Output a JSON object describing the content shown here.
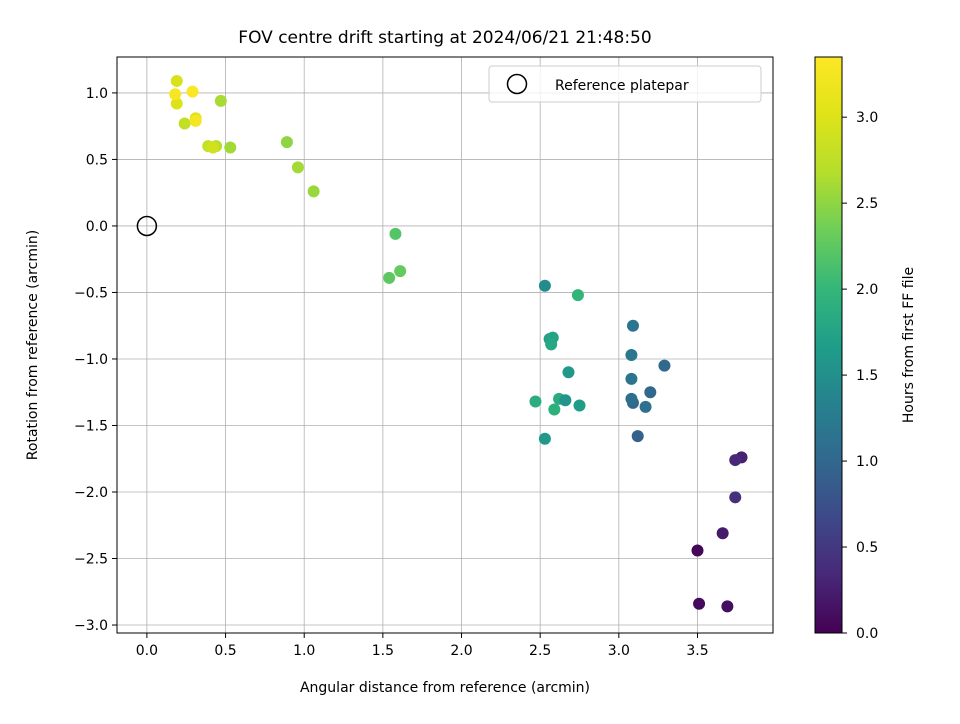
{
  "chart_data": {
    "type": "scatter",
    "title": "FOV centre drift starting at 2024/06/21 21:48:50",
    "xlabel": "Angular distance from reference (arcmin)",
    "ylabel": "Rotation from reference (arcmin)",
    "xlim": [
      -0.19,
      3.98
    ],
    "ylim": [
      -3.06,
      1.27
    ],
    "xticks": [
      0.0,
      0.5,
      1.0,
      1.5,
      2.0,
      2.5,
      3.0,
      3.5
    ],
    "xtick_labels": [
      "0.0",
      "0.5",
      "1.0",
      "1.5",
      "2.0",
      "2.5",
      "3.0",
      "3.5"
    ],
    "yticks": [
      1.0,
      0.5,
      0.0,
      -0.5,
      -1.0,
      -1.5,
      -2.0,
      -2.5,
      -3.0
    ],
    "ytick_labels": [
      "1.0",
      "0.5",
      "0.0",
      "−0.5",
      "−1.0",
      "−1.5",
      "−2.0",
      "−2.5",
      "−3.0"
    ],
    "grid": true,
    "legend": {
      "position": "top-right",
      "entries": [
        "Reference platepar"
      ]
    },
    "reference_point": {
      "x": 0.0,
      "y": 0.0,
      "label": "Reference platepar"
    },
    "colorbar": {
      "label": "Hours from first FF file",
      "range": [
        0.0,
        3.35
      ],
      "colormap": "viridis",
      "ticks": [
        0.0,
        0.5,
        1.0,
        1.5,
        2.0,
        2.5,
        3.0
      ],
      "tick_labels": [
        "0.0",
        "0.5",
        "1.0",
        "1.5",
        "2.0",
        "2.5",
        "3.0"
      ]
    },
    "points": [
      {
        "x": 3.5,
        "y": -2.44,
        "c": 0.05
      },
      {
        "x": 3.51,
        "y": -2.84,
        "c": 0.08
      },
      {
        "x": 3.69,
        "y": -2.86,
        "c": 0.12
      },
      {
        "x": 3.66,
        "y": -2.31,
        "c": 0.22
      },
      {
        "x": 3.74,
        "y": -2.04,
        "c": 0.42
      },
      {
        "x": 3.78,
        "y": -1.74,
        "c": 0.28
      },
      {
        "x": 3.74,
        "y": -1.76,
        "c": 0.35
      },
      {
        "x": 3.12,
        "y": -1.58,
        "c": 0.95
      },
      {
        "x": 3.09,
        "y": -1.33,
        "c": 1.05
      },
      {
        "x": 3.08,
        "y": -1.3,
        "c": 1.1
      },
      {
        "x": 3.17,
        "y": -1.36,
        "c": 1.12
      },
      {
        "x": 3.2,
        "y": -1.25,
        "c": 1.0
      },
      {
        "x": 3.08,
        "y": -1.15,
        "c": 1.15
      },
      {
        "x": 3.08,
        "y": -0.97,
        "c": 1.2
      },
      {
        "x": 3.09,
        "y": -0.75,
        "c": 1.18
      },
      {
        "x": 3.29,
        "y": -1.05,
        "c": 1.02
      },
      {
        "x": 2.53,
        "y": -0.45,
        "c": 1.45
      },
      {
        "x": 2.74,
        "y": -0.52,
        "c": 1.98
      },
      {
        "x": 2.56,
        "y": -0.85,
        "c": 1.7
      },
      {
        "x": 2.58,
        "y": -0.84,
        "c": 1.75
      },
      {
        "x": 2.57,
        "y": -0.89,
        "c": 1.8
      },
      {
        "x": 2.68,
        "y": -1.1,
        "c": 1.6
      },
      {
        "x": 2.62,
        "y": -1.3,
        "c": 1.85
      },
      {
        "x": 2.66,
        "y": -1.31,
        "c": 1.55
      },
      {
        "x": 2.75,
        "y": -1.35,
        "c": 1.65
      },
      {
        "x": 2.59,
        "y": -1.38,
        "c": 1.9
      },
      {
        "x": 2.47,
        "y": -1.32,
        "c": 1.88
      },
      {
        "x": 2.53,
        "y": -1.6,
        "c": 1.62
      },
      {
        "x": 1.58,
        "y": -0.06,
        "c": 2.2
      },
      {
        "x": 1.54,
        "y": -0.39,
        "c": 2.25
      },
      {
        "x": 1.61,
        "y": -0.34,
        "c": 2.28
      },
      {
        "x": 1.06,
        "y": 0.26,
        "c": 2.55
      },
      {
        "x": 0.96,
        "y": 0.44,
        "c": 2.6
      },
      {
        "x": 0.89,
        "y": 0.63,
        "c": 2.5
      },
      {
        "x": 0.53,
        "y": 0.59,
        "c": 2.58
      },
      {
        "x": 0.47,
        "y": 0.94,
        "c": 2.62
      },
      {
        "x": 0.44,
        "y": 0.6,
        "c": 2.7
      },
      {
        "x": 0.39,
        "y": 0.6,
        "c": 2.8
      },
      {
        "x": 0.42,
        "y": 0.59,
        "c": 2.9
      },
      {
        "x": 0.24,
        "y": 0.77,
        "c": 2.78
      },
      {
        "x": 0.31,
        "y": 0.81,
        "c": 3.05
      },
      {
        "x": 0.31,
        "y": 0.79,
        "c": 3.25
      },
      {
        "x": 0.19,
        "y": 0.92,
        "c": 3.0
      },
      {
        "x": 0.19,
        "y": 1.09,
        "c": 2.95
      },
      {
        "x": 0.18,
        "y": 0.99,
        "c": 3.3
      },
      {
        "x": 0.29,
        "y": 1.01,
        "c": 3.33
      }
    ]
  }
}
